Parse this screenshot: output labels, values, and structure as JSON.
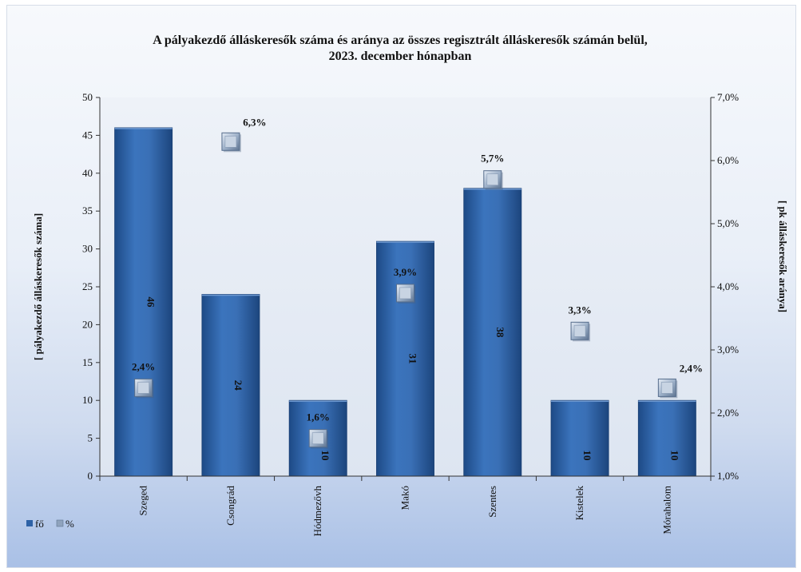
{
  "chart_data": {
    "type": "bar",
    "title": "A pályakezdő álláskeresők száma és aránya az összes regisztrált álláskeresők számán belül,",
    "subtitle": "2023. december hónapban",
    "ylabel": "[ pályakezdő álláskeresők száma]",
    "y2label": "[ pk álláskeresők aránya]",
    "categories": [
      "Szeged",
      "Csongrád",
      "Hódmezővh",
      "Makó",
      "Szentes",
      "Kistelek",
      "Mórahalom"
    ],
    "ylim": [
      0,
      50
    ],
    "yticks": [
      "0",
      "5",
      "10",
      "15",
      "20",
      "25",
      "30",
      "35",
      "40",
      "45",
      "50"
    ],
    "y2lim": [
      1.0,
      7.0
    ],
    "y2ticks": [
      "1,0%",
      "2,0%",
      "3,0%",
      "4,0%",
      "5,0%",
      "6,0%",
      "7,0%"
    ],
    "series": [
      {
        "name": "fő",
        "type": "bar",
        "axis": "left",
        "color": "#2e62a6",
        "values": [
          46,
          24,
          10,
          31,
          38,
          10,
          10
        ],
        "labels": [
          "46",
          "24",
          "10",
          "31",
          "38",
          "10",
          "10"
        ]
      },
      {
        "name": "%",
        "type": "marker",
        "axis": "right",
        "color": "#8fa3bd",
        "values": [
          2.4,
          6.3,
          1.6,
          3.9,
          5.7,
          3.3,
          2.4
        ],
        "labels": [
          "2,4%",
          "6,3%",
          "1,6%",
          "3,9%",
          "5,7%",
          "3,3%",
          "2,4%"
        ]
      }
    ],
    "grid": false,
    "legend_position": "bottom-left"
  }
}
